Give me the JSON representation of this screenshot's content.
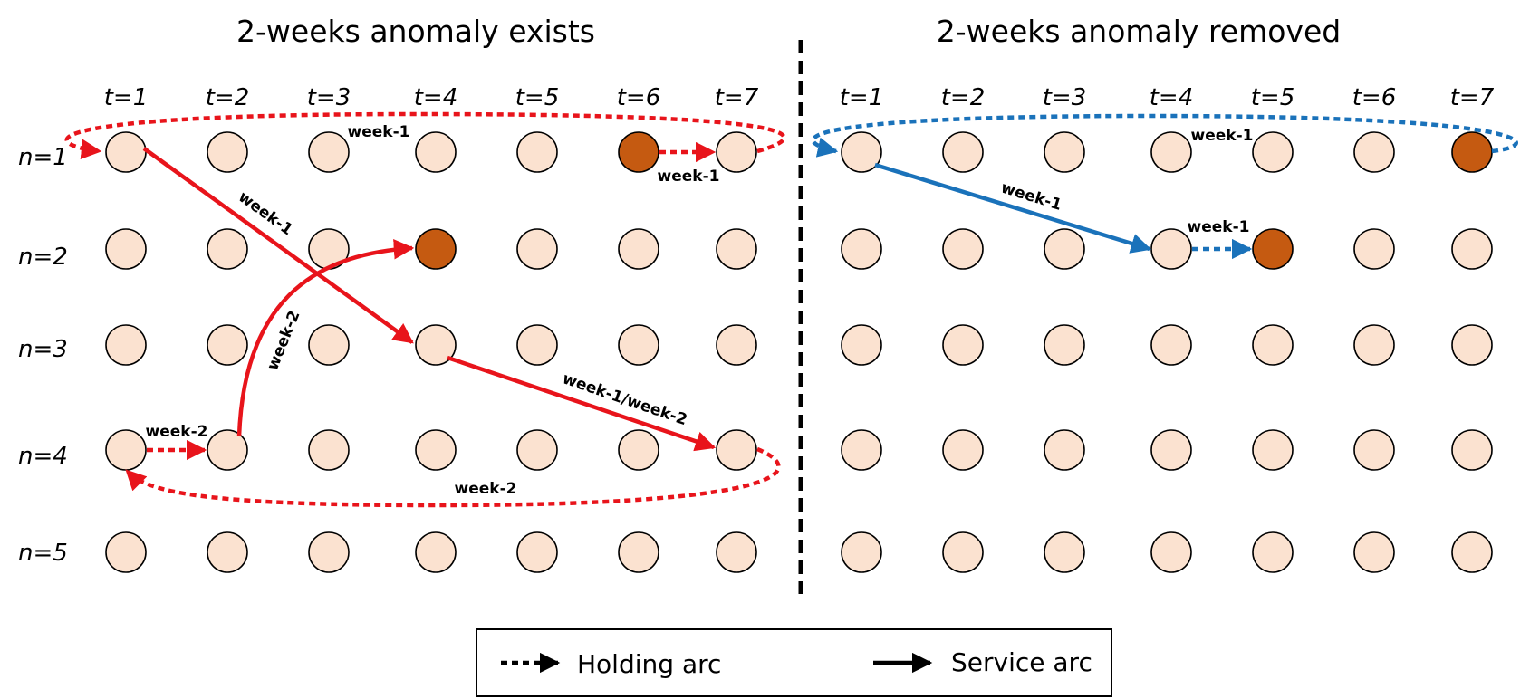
{
  "left_panel": {
    "title": "2-weeks anomaly exists",
    "time_labels": [
      "t=1",
      "t=2",
      "t=3",
      "t=4",
      "t=5",
      "t=6",
      "t=7"
    ],
    "node_labels": [
      "n=1",
      "n=2",
      "n=3",
      "n=4",
      "n=5"
    ],
    "highlighted_nodes": [
      {
        "n": 1,
        "t": 6
      },
      {
        "n": 2,
        "t": 4
      }
    ],
    "arc_labels": {
      "wrap_n1": "week-1",
      "hold_n1_t6": "week-1",
      "service_n1_n3": "week-1",
      "service_n4_n2": "week-2",
      "hold_n4_t1": "week-2",
      "service_n3_n4": "week-1/week-2",
      "wrap_n4": "week-2"
    },
    "color": "#e8141b"
  },
  "right_panel": {
    "title": "2-weeks anomaly removed",
    "time_labels": [
      "t=1",
      "t=2",
      "t=3",
      "t=4",
      "t=5",
      "t=6",
      "t=7"
    ],
    "highlighted_nodes": [
      {
        "n": 1,
        "t": 7
      },
      {
        "n": 2,
        "t": 5
      }
    ],
    "arc_labels": {
      "wrap_n1": "week-1",
      "service_n1_n2": "week-1",
      "hold_n2_t4": "week-1"
    },
    "color": "#1a72ba"
  },
  "node_colors": {
    "normal": "#fbe2d0",
    "highlighted": "#c55a11",
    "stroke": "#000000"
  },
  "legend": {
    "holding_label": "Holding arc",
    "service_label": "Service arc"
  }
}
